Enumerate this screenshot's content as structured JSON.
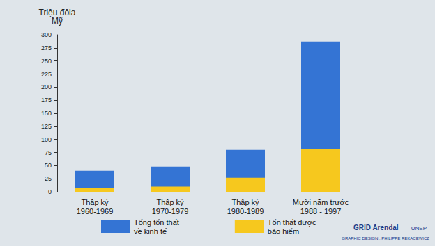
{
  "chart_data": {
    "type": "bar",
    "y_label": "Triệu đôla\nMỹ",
    "categories": [
      "Thập kỷ\n1960-1969",
      "Thập kỷ\n1970-1979",
      "Thập kỷ\n1980-1989",
      "Mười năm trước\n1988 - 1997"
    ],
    "series": [
      {
        "name": "Tổng tổn thất\nvề kinh tế",
        "color": "#3474d4",
        "values": [
          40,
          48,
          80,
          287
        ]
      },
      {
        "name": "Tổn thất được\nbảo hiểm",
        "color": "#f6c81e",
        "values": [
          7,
          10,
          27,
          82
        ]
      }
    ],
    "stacked": false,
    "ylim": [
      0,
      300
    ],
    "yticks": [
      0,
      25,
      50,
      75,
      100,
      125,
      150,
      175,
      200,
      225,
      250,
      275,
      300
    ],
    "grid": false,
    "legend": "bottom",
    "annotations": [
      "GRID Arendal",
      "UNEP",
      "GRAPHIC DESIGN : PHILIPPE REKACEWICZ"
    ]
  }
}
